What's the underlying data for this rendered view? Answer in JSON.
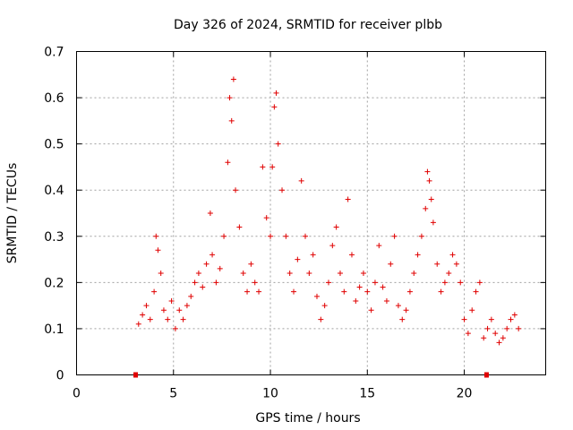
{
  "chart_data": {
    "type": "scatter",
    "title": "Day 326 of 2024, SRMTID for receiver plbb",
    "xlabel": "GPS time / hours",
    "ylabel": "SRMTID / TECUs",
    "xlim": [
      0,
      24.2
    ],
    "ylim": [
      0,
      0.7
    ],
    "xticks": [
      0,
      5,
      10,
      15,
      20
    ],
    "xtick_labels": [
      "0",
      "5",
      "10",
      "15",
      "20"
    ],
    "yticks": [
      0,
      0.1,
      0.2,
      0.3,
      0.4,
      0.5,
      0.6,
      0.7
    ],
    "ytick_labels": [
      "0",
      "0.1",
      "0.2",
      "0.3",
      "0.4",
      "0.5",
      "0.6",
      "0.7"
    ],
    "grid": true,
    "marker": "+",
    "color": "#e00000",
    "baseline_markers": [
      {
        "x": 3.05,
        "y": 0
      },
      {
        "x": 21.15,
        "y": 0
      }
    ],
    "series": [
      {
        "name": "SRMTID",
        "x": [
          3.2,
          3.4,
          3.6,
          3.8,
          4.0,
          4.1,
          4.2,
          4.35,
          4.5,
          4.7,
          4.9,
          5.1,
          5.3,
          5.5,
          5.7,
          5.9,
          6.1,
          6.3,
          6.5,
          6.7,
          6.9,
          7.0,
          7.2,
          7.4,
          7.6,
          7.8,
          7.9,
          8.0,
          8.1,
          8.2,
          8.4,
          8.6,
          8.8,
          9.0,
          9.2,
          9.4,
          9.6,
          9.8,
          10.0,
          10.1,
          10.2,
          10.3,
          10.4,
          10.6,
          10.8,
          11.0,
          11.2,
          11.4,
          11.6,
          11.8,
          12.0,
          12.2,
          12.4,
          12.6,
          12.8,
          13.0,
          13.2,
          13.4,
          13.6,
          13.8,
          14.0,
          14.2,
          14.4,
          14.6,
          14.8,
          15.0,
          15.2,
          15.4,
          15.6,
          15.8,
          16.0,
          16.2,
          16.4,
          16.6,
          16.8,
          17.0,
          17.2,
          17.4,
          17.6,
          17.8,
          18.0,
          18.1,
          18.2,
          18.3,
          18.4,
          18.6,
          18.8,
          19.0,
          19.2,
          19.4,
          19.6,
          19.8,
          20.0,
          20.2,
          20.4,
          20.6,
          20.8,
          21.0,
          21.2,
          21.4,
          21.6,
          21.8,
          22.0,
          22.2,
          22.4,
          22.6,
          22.8
        ],
        "y": [
          0.11,
          0.13,
          0.15,
          0.12,
          0.18,
          0.3,
          0.27,
          0.22,
          0.14,
          0.12,
          0.16,
          0.1,
          0.14,
          0.12,
          0.15,
          0.17,
          0.2,
          0.22,
          0.19,
          0.24,
          0.35,
          0.26,
          0.2,
          0.23,
          0.3,
          0.46,
          0.6,
          0.55,
          0.64,
          0.4,
          0.32,
          0.22,
          0.18,
          0.24,
          0.2,
          0.18,
          0.45,
          0.34,
          0.3,
          0.45,
          0.58,
          0.61,
          0.5,
          0.4,
          0.3,
          0.22,
          0.18,
          0.25,
          0.42,
          0.3,
          0.22,
          0.26,
          0.17,
          0.12,
          0.15,
          0.2,
          0.28,
          0.32,
          0.22,
          0.18,
          0.38,
          0.26,
          0.16,
          0.19,
          0.22,
          0.18,
          0.14,
          0.2,
          0.28,
          0.19,
          0.16,
          0.24,
          0.3,
          0.15,
          0.12,
          0.14,
          0.18,
          0.22,
          0.26,
          0.3,
          0.36,
          0.44,
          0.42,
          0.38,
          0.33,
          0.24,
          0.18,
          0.2,
          0.22,
          0.26,
          0.24,
          0.2,
          0.12,
          0.09,
          0.14,
          0.18,
          0.2,
          0.08,
          0.1,
          0.12,
          0.09,
          0.07,
          0.08,
          0.1,
          0.12,
          0.13,
          0.1
        ]
      }
    ]
  }
}
